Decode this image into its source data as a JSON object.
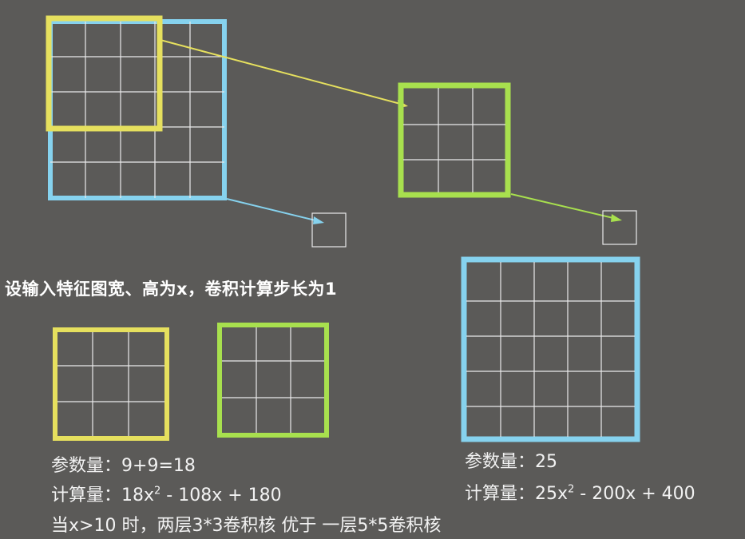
{
  "description_text": "设输入特征图宽、高为x，卷积计算步长为1",
  "left_stats": {
    "params_label": "参数量：",
    "params_value": "9+9=18",
    "compute_label": "计算量：",
    "compute_a": "18x",
    "compute_exp": "2",
    "compute_b": " - 108x + 180"
  },
  "right_stats": {
    "params_label": "参数量：",
    "params_value": "25",
    "compute_label": "计算量：",
    "compute_a": "25x",
    "compute_exp": "2",
    "compute_b": " - 200x + 400"
  },
  "conclusion": "当x>10 时，两层3*3卷积核 优于 一层5*5卷积核",
  "colors": {
    "background": "#5b5a58",
    "yellow_kernel": "#e6e05e",
    "green_kernel": "#a8e04e",
    "cyan_kernel": "#86d2ee",
    "grid_line": "#f0f0f0"
  }
}
